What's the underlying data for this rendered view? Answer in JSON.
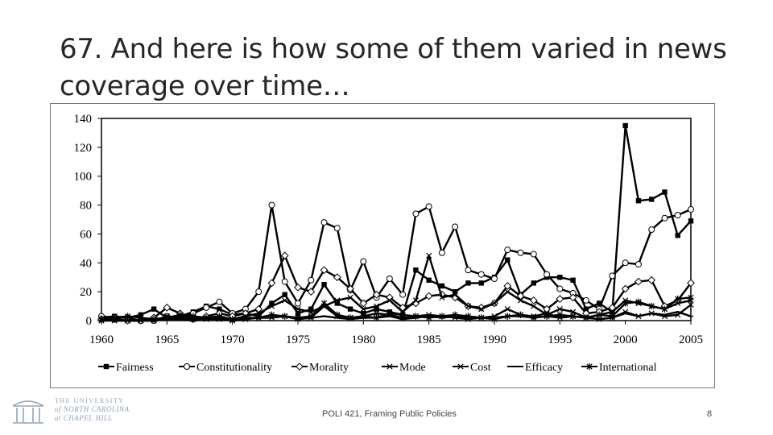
{
  "slide": {
    "title": "67. And here is how some of them varied in news coverage over time…",
    "footer": "POLI 421, Framing Public Policies",
    "page_number": "8"
  },
  "logo": {
    "line1": "THE UNIVERSITY",
    "line2": "of NORTH CAROLINA",
    "line3": "at CHAPEL HILL",
    "color": "#8fa3b7"
  },
  "chart_data": {
    "type": "line",
    "x": [
      1960,
      1961,
      1962,
      1963,
      1964,
      1965,
      1966,
      1967,
      1968,
      1969,
      1970,
      1971,
      1972,
      1973,
      1974,
      1975,
      1976,
      1977,
      1978,
      1979,
      1980,
      1981,
      1982,
      1983,
      1984,
      1985,
      1986,
      1987,
      1988,
      1989,
      1990,
      1991,
      1992,
      1993,
      1994,
      1995,
      1996,
      1997,
      1998,
      1999,
      2000,
      2001,
      2002,
      2003,
      2004,
      2005
    ],
    "xticks": [
      "1960",
      "1965",
      "1970",
      "1975",
      "1980",
      "1985",
      "1990",
      "1995",
      "2000",
      "2005"
    ],
    "yticks": [
      "0",
      "20",
      "40",
      "60",
      "80",
      "100",
      "120",
      "140"
    ],
    "ylim": [
      0,
      140
    ],
    "xlim": [
      1960,
      2005
    ],
    "legend_position": "bottom",
    "series": [
      {
        "name": "Fairness",
        "marker": "square-filled",
        "values": [
          2,
          3,
          2,
          4,
          8,
          2,
          3,
          6,
          10,
          8,
          4,
          5,
          3,
          12,
          18,
          5,
          8,
          25,
          12,
          8,
          5,
          8,
          6,
          4,
          35,
          28,
          24,
          20,
          26,
          26,
          30,
          42,
          18,
          26,
          30,
          30,
          28,
          8,
          12,
          6,
          135,
          83,
          84,
          89,
          59,
          69
        ]
      },
      {
        "name": "Constitutionality",
        "marker": "circle-open",
        "values": [
          3,
          2,
          2,
          0,
          0,
          3,
          2,
          5,
          9,
          13,
          5,
          8,
          20,
          80,
          27,
          12,
          28,
          68,
          64,
          21,
          41,
          16,
          29,
          18,
          74,
          79,
          47,
          65,
          35,
          32,
          29,
          49,
          47,
          46,
          32,
          22,
          19,
          14,
          8,
          31,
          40,
          39,
          63,
          71,
          73,
          77
        ]
      },
      {
        "name": "Morality",
        "marker": "diamond-filled",
        "values": [
          1,
          1,
          0,
          0,
          2,
          9,
          5,
          1,
          3,
          5,
          3,
          5,
          8,
          26,
          45,
          23,
          20,
          35,
          30,
          22,
          12,
          18,
          16,
          9,
          12,
          17,
          18,
          16,
          10,
          9,
          12,
          24,
          17,
          14,
          8,
          15,
          16,
          5,
          6,
          9,
          22,
          27,
          28,
          10,
          14,
          26
        ]
      },
      {
        "name": "Mode",
        "marker": "x",
        "values": [
          0,
          1,
          0,
          0,
          1,
          2,
          3,
          1,
          2,
          1,
          1,
          3,
          5,
          10,
          14,
          8,
          6,
          10,
          14,
          16,
          8,
          10,
          14,
          6,
          14,
          45,
          16,
          18,
          10,
          8,
          12,
          20,
          14,
          10,
          4,
          8,
          6,
          2,
          4,
          6,
          14,
          12,
          10,
          8,
          12,
          14
        ]
      },
      {
        "name": "Cost",
        "marker": "x",
        "values": [
          1,
          0,
          0,
          0,
          0,
          3,
          2,
          1,
          1,
          2,
          0,
          1,
          2,
          2,
          3,
          1,
          2,
          10,
          3,
          2,
          3,
          5,
          4,
          2,
          3,
          4,
          3,
          2,
          1,
          2,
          3,
          8,
          4,
          3,
          5,
          2,
          3,
          2,
          1,
          2,
          6,
          3,
          5,
          3,
          4,
          11
        ]
      },
      {
        "name": "Efficacy",
        "marker": "dash",
        "values": [
          0,
          0,
          0,
          0,
          0,
          1,
          1,
          0,
          1,
          1,
          0,
          1,
          2,
          2,
          3,
          1,
          2,
          3,
          2,
          1,
          2,
          2,
          3,
          1,
          2,
          3,
          2,
          3,
          2,
          2,
          2,
          3,
          3,
          2,
          3,
          2,
          3,
          2,
          1,
          2,
          5,
          3,
          5,
          4,
          6,
          3
        ]
      },
      {
        "name": "International",
        "marker": "asterisk",
        "values": [
          1,
          2,
          3,
          2,
          1,
          2,
          4,
          3,
          2,
          3,
          1,
          2,
          2,
          4,
          3,
          2,
          3,
          12,
          4,
          2,
          3,
          2,
          5,
          4,
          3,
          2,
          3,
          4,
          3,
          2,
          1,
          3,
          4,
          2,
          3,
          4,
          3,
          2,
          4,
          3,
          12,
          13,
          10,
          8,
          15,
          16
        ]
      }
    ]
  }
}
